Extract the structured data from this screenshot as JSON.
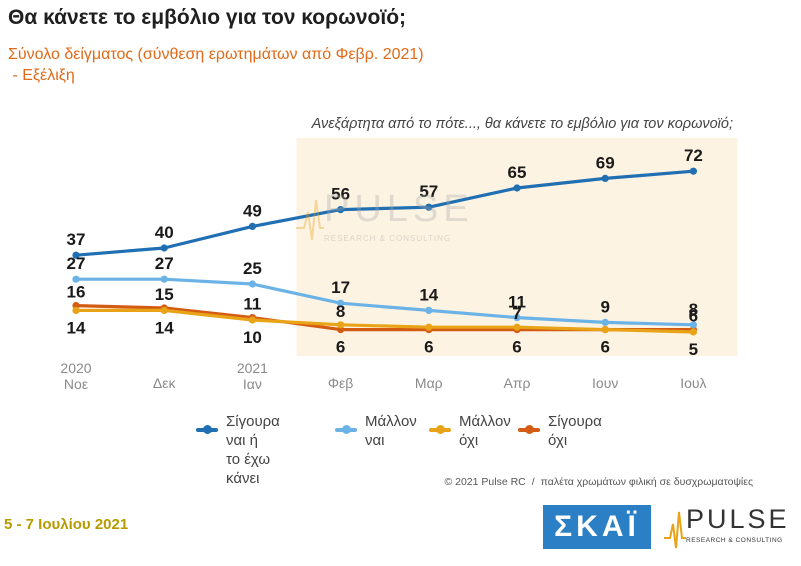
{
  "header": {
    "title": "Θα κάνετε το εμβόλιο για τον κορωνοϊό;",
    "subtitle_line1": "Σύνολο δείγματος (σύνθεση ερωτημάτων από Φεβρ. 2021)",
    "subtitle_line2": " - Εξέλιξη"
  },
  "chart_data": {
    "type": "line",
    "annotation": "Ανεξάρτητα από το πότε..., θα κάνετε το εμβόλιο για τον κορωνοϊό;",
    "categories": [
      "2020\nΝοε",
      "Δεκ",
      "2021\nΙαν",
      "Φεβ",
      "Μαρ",
      "Απρ",
      "Ιουν",
      "Ιουλ"
    ],
    "highlighted_categories": [
      "Φεβ",
      "Μαρ",
      "Απρ",
      "Ιουν",
      "Ιουλ"
    ],
    "series": [
      {
        "name": "Σίγουρα ναι ή\nτο έχω κάνει",
        "color": "#1f6fb2",
        "values": [
          37,
          40,
          49,
          56,
          57,
          65,
          69,
          72
        ]
      },
      {
        "name": "Μάλλον\nναι",
        "color": "#6bb3e6",
        "values": [
          27,
          27,
          25,
          17,
          14,
          11,
          9,
          8
        ]
      },
      {
        "name": "Μάλλον\nόχι",
        "color": "#e8a317",
        "values": [
          14,
          14,
          10,
          8,
          7,
          7,
          6,
          5
        ]
      },
      {
        "name": "Σίγουρα\nόχι",
        "color": "#d45b12",
        "values": [
          16,
          15,
          11,
          6,
          6,
          6,
          6,
          6
        ]
      }
    ],
    "top_labels": [
      "37",
      "40",
      "49",
      "56",
      "57",
      "65",
      "69",
      "72"
    ],
    "upper_mid_labels": [
      "27",
      "27",
      "25",
      "17",
      "14",
      "11",
      "9",
      "8"
    ],
    "middle_labels": [
      "16",
      "15",
      "11",
      "8",
      "",
      "7",
      "",
      "6"
    ],
    "lower_labels": [
      "14",
      "14",
      "10",
      "6",
      "6",
      "6",
      "6",
      "5"
    ],
    "legend_position": "bottom",
    "grid": false
  },
  "watermark": {
    "word": "PULSE",
    "tagline": "RESEARCH & CONSULTING"
  },
  "footer": {
    "copyright": "© 2021 Pulse RC",
    "separator": "/",
    "palette_note": "παλέτα χρωμάτων φιλική σε δυσχρωματοψίες",
    "date": "5 - 7 Ιουλίου 2021",
    "skai_logo": "ΣΚΑΪ",
    "pulse_word": "PULSE",
    "pulse_tagline": "RESEARCH & CONSULTING"
  }
}
